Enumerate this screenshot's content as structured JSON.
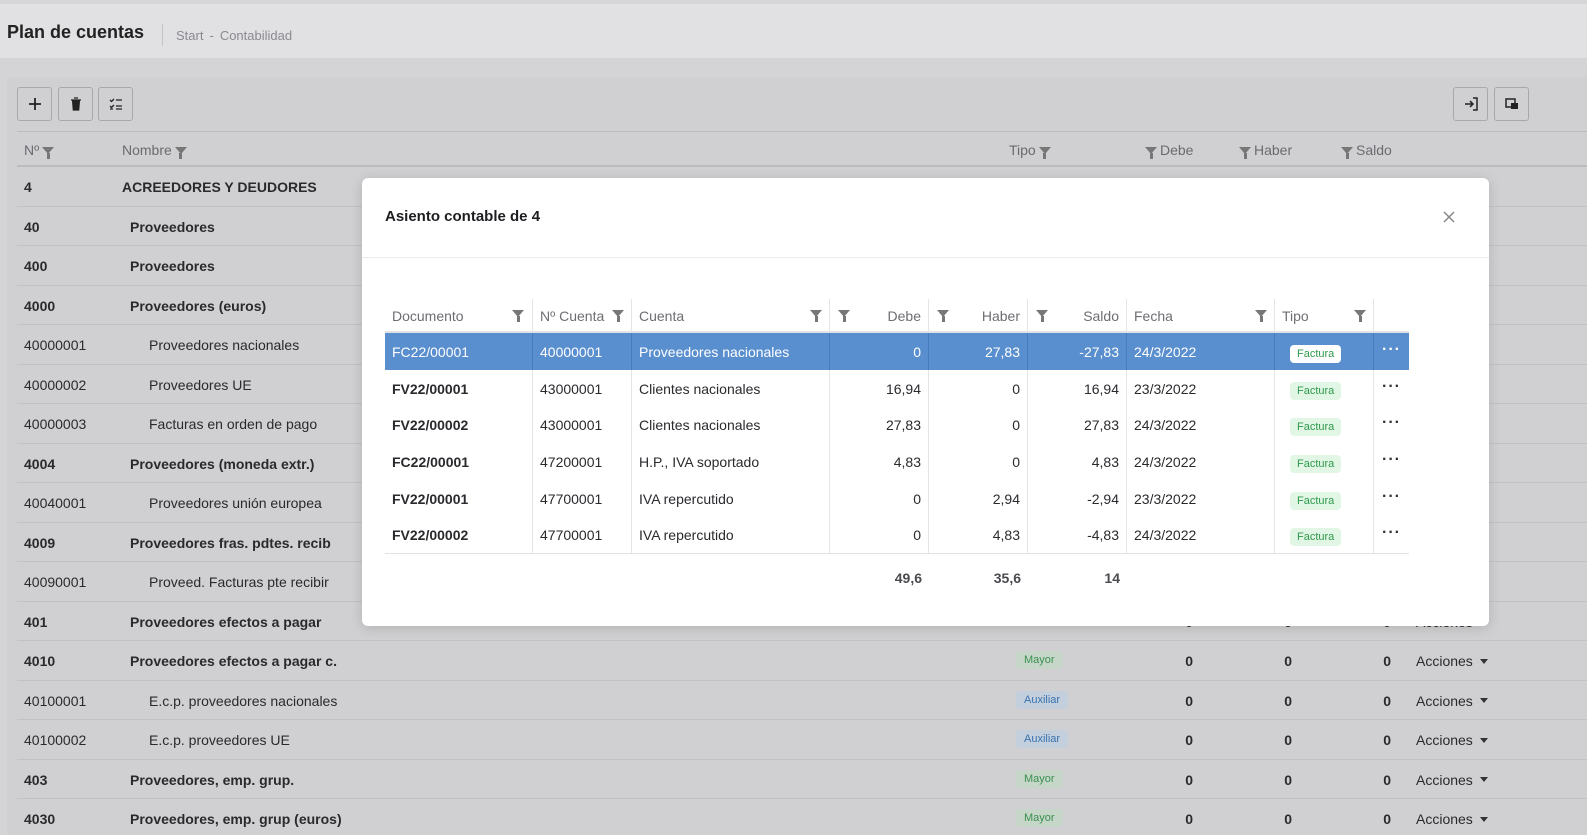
{
  "page": {
    "title": "Plan de cuentas",
    "breadcrumb": [
      "Start",
      "-",
      "Contabilidad"
    ]
  },
  "toolbar": {
    "left_icons": [
      "plus-icon",
      "trash-icon",
      "checklist-icon"
    ],
    "right_icons": [
      "import-icon",
      "export-icon"
    ]
  },
  "table": {
    "headers": {
      "num": "Nº",
      "name": "Nombre",
      "type": "Tipo",
      "debe": "Debe",
      "haber": "Haber",
      "saldo": "Saldo"
    },
    "rows": [
      {
        "num": "4",
        "name": "ACREEDORES Y DEUDORES",
        "level": 0,
        "bold": true
      },
      {
        "num": "40",
        "name": "Proveedores",
        "level": 1,
        "bold": true
      },
      {
        "num": "400",
        "name": "Proveedores",
        "level": 1,
        "bold": true
      },
      {
        "num": "4000",
        "name": "Proveedores (euros)",
        "level": 1,
        "bold": true
      },
      {
        "num": "40000001",
        "name": "Proveedores nacionales",
        "level": 2,
        "bold": false
      },
      {
        "num": "40000002",
        "name": "Proveedores UE",
        "level": 2,
        "bold": false
      },
      {
        "num": "40000003",
        "name": "Facturas en orden de pago",
        "level": 2,
        "bold": false
      },
      {
        "num": "4004",
        "name": "Proveedores (moneda extr.)",
        "level": 1,
        "bold": true
      },
      {
        "num": "40040001",
        "name": "Proveedores unión europea",
        "level": 2,
        "bold": false
      },
      {
        "num": "4009",
        "name": "Proveedores fras. pdtes. recib",
        "level": 1,
        "bold": true
      },
      {
        "num": "40090001",
        "name": "Proveed. Facturas pte recibir",
        "level": 2,
        "bold": false
      },
      {
        "num": "401",
        "name": "Proveedores efectos a pagar",
        "level": 1,
        "bold": true,
        "debe": "0",
        "haber": "0",
        "saldo": "0",
        "actions": "Acciones"
      },
      {
        "num": "4010",
        "name": "Proveedores efectos a pagar c.",
        "level": 1,
        "bold": true,
        "type": "Mayor",
        "debe": "0",
        "haber": "0",
        "saldo": "0",
        "actions": "Acciones"
      },
      {
        "num": "40100001",
        "name": "E.c.p. proveedores nacionales",
        "level": 2,
        "bold": false,
        "type": "Auxiliar",
        "debe": "0",
        "haber": "0",
        "saldo": "0",
        "actions": "Acciones"
      },
      {
        "num": "40100002",
        "name": "E.c.p. proveedores UE",
        "level": 2,
        "bold": false,
        "type": "Auxiliar",
        "debe": "0",
        "haber": "0",
        "saldo": "0",
        "actions": "Acciones"
      },
      {
        "num": "403",
        "name": "Proveedores, emp. grup.",
        "level": 1,
        "bold": true,
        "type": "Mayor",
        "debe": "0",
        "haber": "0",
        "saldo": "0",
        "actions": "Acciones"
      },
      {
        "num": "4030",
        "name": "Proveedores, emp. grup (euros)",
        "level": 1,
        "bold": true,
        "type": "Mayor",
        "debe": "0",
        "haber": "0",
        "saldo": "0",
        "actions": "Acciones"
      }
    ]
  },
  "modal": {
    "title": "Asiento contable de 4",
    "close_icon": "close-icon",
    "headers": {
      "doc": "Documento",
      "ncuenta": "Nº Cuenta",
      "cuenta": "Cuenta",
      "debe": "Debe",
      "haber": "Haber",
      "saldo": "Saldo",
      "fecha": "Fecha",
      "tipo": "Tipo"
    },
    "rows": [
      {
        "doc": "FC22/00001",
        "ncuenta": "40000001",
        "cuenta": "Proveedores nacionales",
        "debe": "0",
        "haber": "27,83",
        "saldo": "-27,83",
        "fecha": "24/3/2022",
        "tipo": "Factura",
        "selected": true
      },
      {
        "doc": "FV22/00001",
        "ncuenta": "43000001",
        "cuenta": "Clientes nacionales",
        "debe": "16,94",
        "haber": "0",
        "saldo": "16,94",
        "fecha": "23/3/2022",
        "tipo": "Factura"
      },
      {
        "doc": "FV22/00002",
        "ncuenta": "43000001",
        "cuenta": "Clientes nacionales",
        "debe": "27,83",
        "haber": "0",
        "saldo": "27,83",
        "fecha": "24/3/2022",
        "tipo": "Factura"
      },
      {
        "doc": "FC22/00001",
        "ncuenta": "47200001",
        "cuenta": "H.P., IVA soportado",
        "debe": "4,83",
        "haber": "0",
        "saldo": "4,83",
        "fecha": "24/3/2022",
        "tipo": "Factura"
      },
      {
        "doc": "FV22/00001",
        "ncuenta": "47700001",
        "cuenta": "IVA repercutido",
        "debe": "0",
        "haber": "2,94",
        "saldo": "-2,94",
        "fecha": "23/3/2022",
        "tipo": "Factura"
      },
      {
        "doc": "FV22/00002",
        "ncuenta": "47700001",
        "cuenta": "IVA repercutido",
        "debe": "0",
        "haber": "4,83",
        "saldo": "-4,83",
        "fecha": "24/3/2022",
        "tipo": "Factura"
      }
    ],
    "totals": {
      "debe": "49,6",
      "haber": "35,6",
      "saldo": "14"
    }
  },
  "colors": {
    "selected_row": "#5a8fcf",
    "tag_green": "#2e9a4a",
    "badge_blue": "#3a73b0"
  }
}
